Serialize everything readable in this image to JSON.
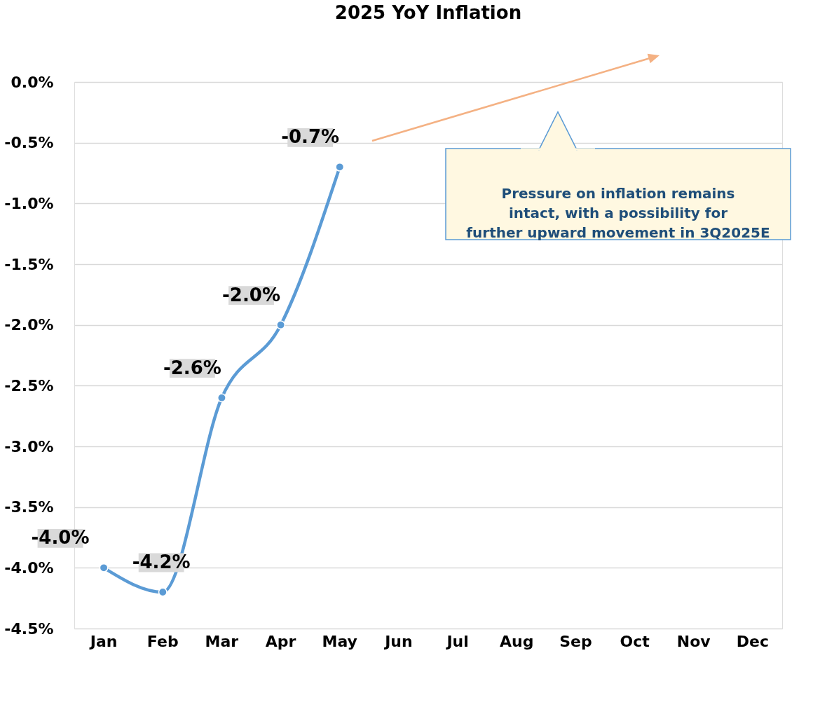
{
  "chart_data": {
    "type": "line",
    "title": "2025 YoY Inflation",
    "categories": [
      "Jan",
      "Feb",
      "Mar",
      "Apr",
      "May",
      "Jun",
      "Jul",
      "Aug",
      "Sep",
      "Oct",
      "Nov",
      "Dec"
    ],
    "series": [
      {
        "color": "#5b9bd5",
        "values": [
          -4.0,
          -4.2,
          -2.6,
          -2.0,
          -0.7,
          null,
          null,
          null,
          null,
          null,
          null,
          null
        ],
        "value_labels": [
          "-4.0%",
          "-4.2%",
          "-2.6%",
          "-2.0%",
          "-0.7%",
          null,
          null,
          null,
          null,
          null,
          null,
          null
        ]
      }
    ],
    "ylim": [
      -4.5,
      0.0
    ],
    "yticks": [
      {
        "value": -4.5,
        "label": "-4.5%"
      },
      {
        "value": -4.0,
        "label": "-4.0%"
      },
      {
        "value": -3.5,
        "label": "-3.5%"
      },
      {
        "value": -3.0,
        "label": "-3.0%"
      },
      {
        "value": -2.5,
        "label": "-2.5%"
      },
      {
        "value": -2.0,
        "label": "-2.0%"
      },
      {
        "value": -1.5,
        "label": "-1.5%"
      },
      {
        "value": -1.0,
        "label": "-1.0%"
      },
      {
        "value": -0.5,
        "label": "-0.5%"
      },
      {
        "value": 0.0,
        "label": "0.0%"
      }
    ],
    "annotations": [
      "Pressure on inflation remains intact, with a possibility for further upward movement in 3Q2025E"
    ],
    "grid": "y",
    "marker": "circle"
  }
}
